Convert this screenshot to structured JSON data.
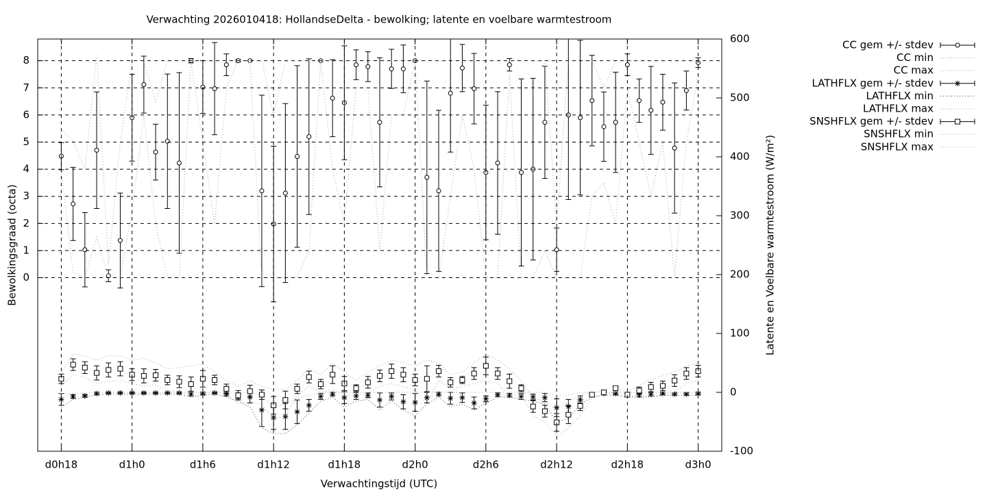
{
  "chart_data": {
    "type": "errorbar",
    "title": "Verwachting 2026010418: HollandseDelta - bewolking; latente en voelbare warmtestroom",
    "x_label": "Verwachtingstijd (UTC)",
    "y_label": "Bewolkingsgraad (octa)",
    "y2_label": "Latente en Voelbare warmtestroom (W/m²)",
    "x": [
      18,
      19,
      20,
      21,
      22,
      23,
      24,
      25,
      26,
      27,
      28,
      29,
      30,
      31,
      32,
      33,
      34,
      35,
      36,
      37,
      38,
      39,
      40,
      41,
      42,
      43,
      44,
      45,
      46,
      47,
      48,
      49,
      50,
      51,
      52,
      53,
      54,
      55,
      56,
      57,
      58,
      59,
      60,
      61,
      62,
      63,
      64,
      65,
      66,
      67,
      68,
      69,
      70,
      71,
      72
    ],
    "xlim": [
      16,
      74
    ],
    "xticks": [
      {
        "value": 18,
        "label": "d0h18"
      },
      {
        "value": 24,
        "label": "d1h0"
      },
      {
        "value": 30,
        "label": "d1h6"
      },
      {
        "value": 36,
        "label": "d1h12"
      },
      {
        "value": 42,
        "label": "d1h18"
      },
      {
        "value": 48,
        "label": "d2h0"
      },
      {
        "value": 54,
        "label": "d2h6"
      },
      {
        "value": 60,
        "label": "d2h12"
      },
      {
        "value": 66,
        "label": "d2h18"
      },
      {
        "value": 72,
        "label": "d3h0"
      }
    ],
    "ylim": [
      -6.4,
      8.8
    ],
    "yticks": [
      0,
      1,
      2,
      3,
      4,
      5,
      6,
      7,
      8
    ],
    "y2lim": [
      -100,
      600
    ],
    "y2ticks": [
      -100,
      0,
      100,
      200,
      300,
      400,
      500,
      600
    ],
    "grid": true,
    "legend": "outside-right",
    "series": [
      {
        "name": "CC gem +/- stdev",
        "style": "errorbar",
        "marker": "circle",
        "axis": "y",
        "color": "#000000",
        "values": [
          4.48,
          2.72,
          1.03,
          4.7,
          0.07,
          1.37,
          5.9,
          7.12,
          4.63,
          5.03,
          4.23,
          8.0,
          7.03,
          6.97,
          7.85,
          8.0,
          8.0,
          3.2,
          1.98,
          3.12,
          4.47,
          5.2,
          8.0,
          6.62,
          6.45,
          7.85,
          7.78,
          5.73,
          7.7,
          7.7,
          8.0,
          3.7,
          3.2,
          6.8,
          7.73,
          6.97,
          3.88,
          4.23,
          7.85,
          3.88,
          4.0,
          5.73,
          1.03,
          6.0,
          5.9,
          6.53,
          5.57,
          5.73,
          7.85,
          6.53,
          6.17,
          6.47,
          4.78,
          6.9,
          7.93
        ],
        "errors": [
          0.5,
          1.35,
          1.37,
          2.15,
          0.22,
          1.75,
          1.6,
          1.05,
          1.03,
          2.48,
          3.33,
          0.08,
          0.97,
          1.7,
          0.4,
          0.05,
          0.0,
          3.53,
          2.87,
          3.3,
          3.35,
          2.87,
          0.0,
          1.42,
          2.1,
          0.55,
          0.55,
          2.38,
          0.72,
          0.88,
          0.0,
          3.55,
          2.97,
          2.17,
          0.87,
          1.3,
          2.48,
          2.63,
          0.23,
          3.45,
          3.35,
          2.07,
          0.8,
          3.12,
          2.85,
          1.67,
          1.28,
          1.85,
          0.4,
          0.8,
          1.62,
          1.03,
          2.4,
          0.72,
          0.18
        ]
      },
      {
        "name": "CC min",
        "style": "dotted",
        "axis": "y",
        "color": "#b0b0b0",
        "values": [
          4.0,
          0.2,
          0,
          1.5,
          0,
          0,
          2.5,
          6.0,
          2.0,
          0,
          0,
          8,
          5.0,
          2.0,
          7.0,
          8,
          8,
          0,
          0,
          0,
          0,
          1.0,
          8,
          4.0,
          2.0,
          7.0,
          7.0,
          1.0,
          6.0,
          6.0,
          8,
          0,
          0,
          3.0,
          6.0,
          4.0,
          0,
          0,
          7.5,
          0,
          0,
          1.0,
          0,
          0,
          0,
          3.0,
          3.5,
          2.0,
          7.0,
          5.0,
          3.0,
          5.0,
          0,
          5.0,
          7.5
        ]
      },
      {
        "name": "CC max",
        "style": "dotted",
        "axis": "y",
        "color": "#b0b0b0",
        "values": [
          5.5,
          5.0,
          4.0,
          8.2,
          0.5,
          5.0,
          8.0,
          8.0,
          6.5,
          8.0,
          8.0,
          8.0,
          8.0,
          8.0,
          8.0,
          8.0,
          8.0,
          8.0,
          6.0,
          8.0,
          8.0,
          8.0,
          8.0,
          8.0,
          8.0,
          8.0,
          8.0,
          8.0,
          8.0,
          8.0,
          8.0,
          8.0,
          8.0,
          8.0,
          8.0,
          8.0,
          8.0,
          8.0,
          8.0,
          8.0,
          8.0,
          8.0,
          2.0,
          8.0,
          8.0,
          8.0,
          7.0,
          8.0,
          8.0,
          8.0,
          8.0,
          8.0,
          8.0,
          8.0,
          8.0
        ]
      },
      {
        "name": "LATHFLX gem +/- stdev",
        "style": "errorbar",
        "marker": "star",
        "axis": "y2",
        "color": "#000000",
        "values": [
          -12,
          -7,
          -6,
          -2,
          -1,
          -1,
          -1,
          -1,
          -1,
          -1,
          -1,
          -3,
          -2,
          -1,
          -3,
          -6,
          -8,
          -30,
          -43,
          -41,
          -33,
          -22,
          -7,
          -3,
          -9,
          -6,
          -5,
          -13,
          -7,
          -16,
          -17,
          -9,
          -3,
          -10,
          -9,
          -18,
          -11,
          -4,
          -5,
          -7,
          -8,
          -9,
          -26,
          -24,
          -12,
          -4,
          -2,
          -2,
          -4,
          -5,
          -3,
          -2,
          -3,
          -3,
          -2
        ],
        "errors": [
          10,
          3,
          2,
          2,
          1,
          1,
          1,
          1,
          1,
          1,
          1,
          3,
          2,
          1,
          3,
          5,
          10,
          28,
          20,
          22,
          20,
          10,
          5,
          3,
          10,
          6,
          4,
          12,
          6,
          12,
          15,
          9,
          3,
          10,
          8,
          10,
          5,
          3,
          3,
          5,
          5,
          7,
          15,
          12,
          6,
          3,
          2,
          2,
          3,
          3,
          3,
          2,
          2,
          2,
          2
        ]
      },
      {
        "name": "LATHFLX min",
        "style": "dotted",
        "axis": "y2",
        "color": "#555555",
        "values": [
          -25,
          -12,
          -8,
          -4,
          -3,
          -3,
          -3,
          -3,
          -3,
          -3,
          -3,
          -8,
          -5,
          -3,
          -8,
          -15,
          -25,
          -60,
          -70,
          -70,
          -55,
          -35,
          -15,
          -8,
          -25,
          -15,
          -12,
          -30,
          -15,
          -30,
          -40,
          -20,
          -8,
          -25,
          -20,
          -30,
          -18,
          -8,
          -8,
          -12,
          -15,
          -20,
          -50,
          -45,
          -20,
          -8,
          -5,
          -5,
          -8,
          -8,
          -8,
          -5,
          -5,
          -5,
          -5
        ]
      },
      {
        "name": "LATHFLX max",
        "style": "dotted",
        "axis": "y2",
        "color": "#b0b0b0",
        "values": [
          -2,
          -2,
          -1,
          0,
          0,
          0,
          0,
          0,
          0,
          0,
          0,
          0,
          0,
          0,
          0,
          0,
          0,
          -5,
          -25,
          -20,
          -10,
          -5,
          0,
          0,
          0,
          0,
          0,
          0,
          0,
          0,
          0,
          0,
          0,
          0,
          0,
          0,
          0,
          0,
          0,
          0,
          0,
          0,
          -5,
          -5,
          0,
          0,
          0,
          0,
          0,
          0,
          0,
          0,
          0,
          0,
          0
        ]
      },
      {
        "name": "SNSHFLX gem +/- stdev",
        "style": "errorbar",
        "marker": "square",
        "axis": "y2",
        "color": "#000000",
        "values": [
          23,
          47,
          42,
          33,
          38,
          40,
          30,
          28,
          29,
          21,
          18,
          14,
          23,
          21,
          6,
          -5,
          2,
          -4,
          -22,
          -13,
          6,
          26,
          14,
          30,
          15,
          7,
          17,
          28,
          36,
          30,
          21,
          23,
          36,
          17,
          21,
          32,
          45,
          32,
          19,
          7,
          -24,
          -32,
          -51,
          -38,
          -23,
          -4,
          0,
          7,
          -4,
          3,
          9,
          11,
          20,
          32,
          36
        ],
        "errors": [
          8,
          10,
          10,
          12,
          12,
          12,
          10,
          12,
          10,
          8,
          10,
          12,
          14,
          8,
          8,
          8,
          10,
          8,
          15,
          15,
          8,
          10,
          8,
          15,
          12,
          6,
          10,
          10,
          12,
          12,
          10,
          22,
          10,
          8,
          6,
          10,
          15,
          10,
          12,
          6,
          10,
          10,
          15,
          15,
          8,
          4,
          2,
          4,
          3,
          6,
          8,
          8,
          10,
          10,
          10
        ]
      },
      {
        "name": "SNSHFLX min",
        "style": "dotted",
        "axis": "y2",
        "color": "#b0b0b0",
        "values": [
          10,
          30,
          25,
          15,
          18,
          20,
          15,
          10,
          12,
          5,
          0,
          -5,
          -5,
          5,
          -5,
          -20,
          -15,
          -20,
          -45,
          -40,
          -5,
          10,
          0,
          5,
          -5,
          -5,
          0,
          10,
          15,
          10,
          5,
          -20,
          20,
          5,
          10,
          15,
          20,
          15,
          -5,
          -5,
          -40,
          -50,
          -75,
          -60,
          -40,
          -10,
          -3,
          0,
          -8,
          -5,
          -5,
          -5,
          0,
          15,
          20
        ]
      },
      {
        "name": "SNSHFLX max",
        "style": "dotted",
        "axis": "y2",
        "color": "#b0b0b0",
        "values": [
          35,
          65,
          62,
          55,
          62,
          62,
          55,
          58,
          50,
          40,
          42,
          45,
          48,
          35,
          20,
          10,
          20,
          10,
          5,
          5,
          20,
          40,
          30,
          50,
          35,
          20,
          35,
          45,
          55,
          50,
          45,
          55,
          50,
          30,
          35,
          50,
          65,
          55,
          40,
          20,
          -10,
          -15,
          -30,
          -15,
          -5,
          0,
          3,
          12,
          0,
          12,
          22,
          28,
          35,
          45,
          50
        ]
      }
    ]
  }
}
